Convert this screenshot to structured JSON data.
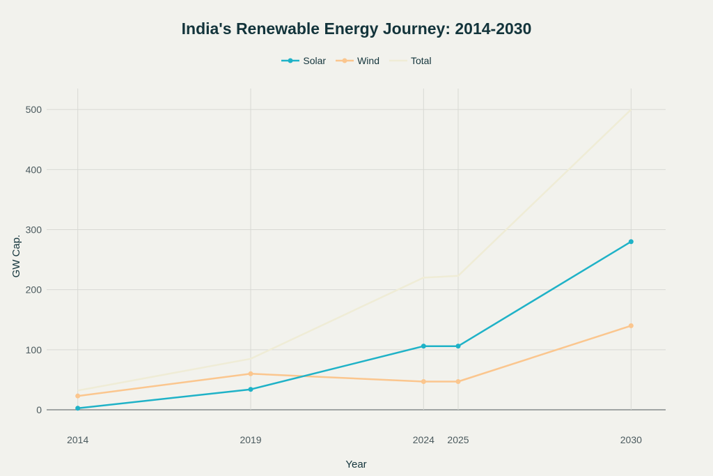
{
  "chart_data": {
    "type": "line",
    "title": "India's Renewable Energy Journey: 2014-2030",
    "xlabel": "Year",
    "ylabel": "GW Cap.",
    "x": [
      2014,
      2019,
      2024,
      2025,
      2030
    ],
    "x_tick_labels": [
      "2014",
      "2019",
      "2024",
      "2025",
      "2030"
    ],
    "xlim": [
      2013.1,
      2031
    ],
    "ylim": [
      0,
      535
    ],
    "y_ticks": [
      0,
      100,
      200,
      300,
      400,
      500
    ],
    "y_tick_labels": [
      "0",
      "100",
      "200",
      "300",
      "400",
      "500"
    ],
    "grid": true,
    "legend_position": "top-center",
    "series": [
      {
        "name": "Solar",
        "color": "#1fb2c7",
        "values": [
          2.6,
          34,
          106,
          106,
          280
        ],
        "markers": true
      },
      {
        "name": "Wind",
        "color": "#fbc68e",
        "values": [
          23,
          60,
          47,
          47,
          140
        ],
        "markers": true
      },
      {
        "name": "Total",
        "color": "#efecd6",
        "values": [
          32,
          85,
          220,
          223,
          500
        ],
        "markers": false
      }
    ]
  }
}
